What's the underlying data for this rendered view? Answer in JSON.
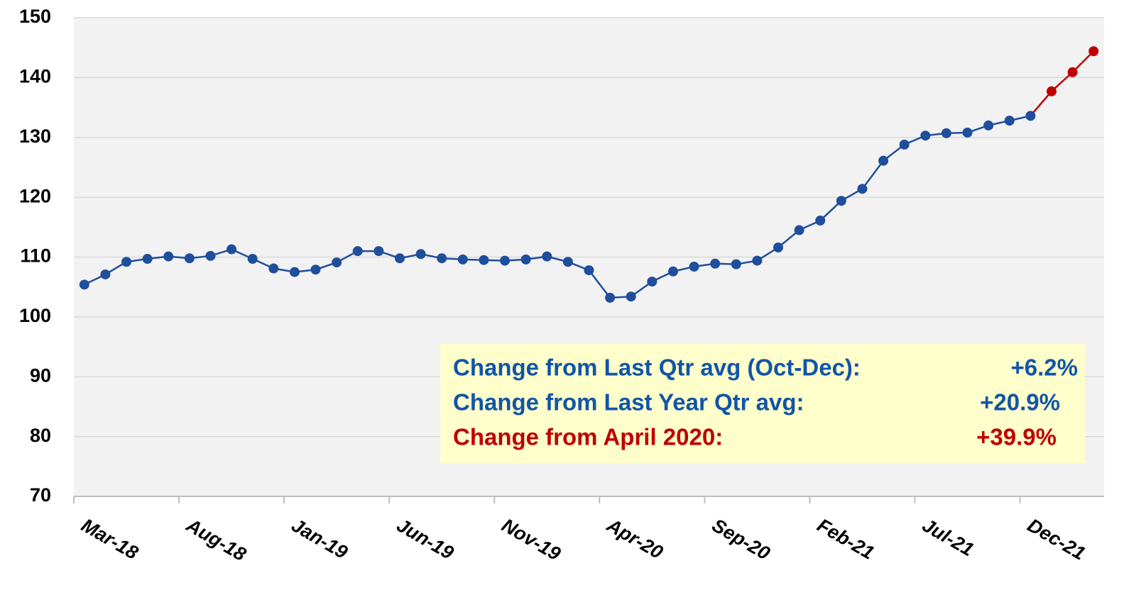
{
  "chart_data": {
    "type": "line",
    "categories": [
      "Mar-18",
      null,
      null,
      null,
      null,
      "Aug-18",
      null,
      null,
      null,
      null,
      "Jan-19",
      null,
      null,
      null,
      null,
      "Jun-19",
      null,
      null,
      null,
      null,
      "Nov-19",
      null,
      null,
      null,
      null,
      "Apr-20",
      null,
      null,
      null,
      null,
      "Sep-20",
      null,
      null,
      null,
      null,
      "Feb-21",
      null,
      null,
      null,
      null,
      "Jul-21",
      null,
      null,
      null,
      null,
      "Dec-21",
      null,
      null,
      null
    ],
    "series": [
      {
        "color": "#1f4e9c",
        "values": [
          105.4,
          107.1,
          109.2,
          109.7,
          110.1,
          109.8,
          110.2,
          111.3,
          109.7,
          108.1,
          107.5,
          107.9,
          109.1,
          111.0,
          111.0,
          109.8,
          110.5,
          109.8,
          109.6,
          109.5,
          109.4,
          109.6,
          110.1,
          109.2,
          107.8,
          103.2,
          103.4,
          105.9,
          107.6,
          108.4,
          108.9,
          108.8,
          109.4,
          111.6,
          114.5,
          116.1,
          119.4,
          121.4,
          126.1,
          128.8,
          130.3,
          130.7,
          130.8,
          132.0,
          132.8,
          133.6,
          null,
          null,
          null
        ]
      },
      {
        "color": "#c00000",
        "values": [
          null,
          null,
          null,
          null,
          null,
          null,
          null,
          null,
          null,
          null,
          null,
          null,
          null,
          null,
          null,
          null,
          null,
          null,
          null,
          null,
          null,
          null,
          null,
          null,
          null,
          null,
          null,
          null,
          null,
          null,
          null,
          null,
          null,
          null,
          null,
          null,
          null,
          null,
          null,
          null,
          null,
          null,
          null,
          null,
          null,
          133.6,
          137.7,
          140.9,
          144.4
        ]
      }
    ],
    "ylim": [
      70,
      150
    ],
    "yticks": [
      70,
      80,
      90,
      100,
      110,
      120,
      130,
      140,
      150
    ],
    "grid": true,
    "annotations": [
      {
        "text": "Change from Last Qtr avg (Oct-Dec):",
        "value": "+6.2%",
        "color": "#1155a8"
      },
      {
        "text": "Change from Last Year Qtr avg:",
        "value": "+20.9%",
        "color": "#1155a8"
      },
      {
        "text": "Change from April 2020:",
        "value": "+39.9%",
        "color": "#c00000"
      }
    ]
  }
}
